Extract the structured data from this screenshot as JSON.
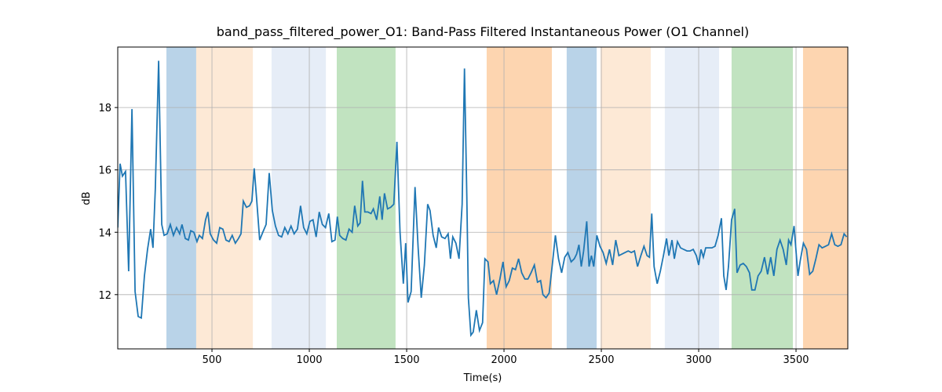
{
  "chart_data": {
    "type": "line",
    "title": "band_pass_filtered_power_O1: Band-Pass Filtered Instantaneous Power (O1 Channel)",
    "xlabel": "Time(s)",
    "ylabel": "dB",
    "xlim": [
      16,
      3766
    ],
    "ylim": [
      10.26,
      19.94
    ],
    "xticks": [
      500,
      1000,
      1500,
      2000,
      2500,
      3000,
      3500
    ],
    "yticks": [
      12,
      14,
      16,
      18
    ],
    "grid": true,
    "spans": [
      {
        "start": 266,
        "end": 419,
        "color": "#b9d3e8"
      },
      {
        "start": 419,
        "end": 710,
        "color": "#fde9d6"
      },
      {
        "start": 806,
        "end": 1085,
        "color": "#e6edf7"
      },
      {
        "start": 1141,
        "end": 1443,
        "color": "#c1e3c0"
      },
      {
        "start": 1911,
        "end": 2246,
        "color": "#fdd5b0"
      },
      {
        "start": 2322,
        "end": 2476,
        "color": "#b9d3e8"
      },
      {
        "start": 2496,
        "end": 2754,
        "color": "#fde9d6"
      },
      {
        "start": 2826,
        "end": 3105,
        "color": "#e6edf7"
      },
      {
        "start": 3169,
        "end": 3484,
        "color": "#c1e3c0"
      },
      {
        "start": 3536,
        "end": 3766,
        "color": "#fdd5b0"
      }
    ],
    "x": [
      16,
      28,
      40,
      56,
      72,
      89,
      105,
      121,
      137,
      153,
      169,
      185,
      197,
      209,
      226,
      242,
      254,
      270,
      286,
      302,
      318,
      334,
      346,
      363,
      379,
      391,
      407,
      423,
      435,
      451,
      467,
      479,
      491,
      508,
      524,
      540,
      556,
      572,
      588,
      604,
      620,
      636,
      649,
      661,
      677,
      693,
      705,
      717,
      729,
      745,
      761,
      778,
      794,
      810,
      826,
      842,
      858,
      874,
      890,
      906,
      922,
      939,
      955,
      971,
      987,
      1003,
      1019,
      1035,
      1051,
      1067,
      1083,
      1100,
      1116,
      1132,
      1144,
      1156,
      1172,
      1188,
      1204,
      1220,
      1233,
      1249,
      1261,
      1273,
      1285,
      1301,
      1317,
      1329,
      1346,
      1362,
      1374,
      1386,
      1402,
      1418,
      1434,
      1450,
      1466,
      1483,
      1495,
      1507,
      1523,
      1543,
      1559,
      1575,
      1591,
      1608,
      1620,
      1636,
      1652,
      1664,
      1680,
      1697,
      1713,
      1725,
      1737,
      1753,
      1769,
      1785,
      1797,
      1809,
      1817,
      1830,
      1842,
      1858,
      1874,
      1890,
      1902,
      1918,
      1930,
      1946,
      1962,
      1979,
      1995,
      2011,
      2027,
      2043,
      2059,
      2075,
      2091,
      2107,
      2123,
      2139,
      2156,
      2172,
      2188,
      2200,
      2216,
      2232,
      2248,
      2264,
      2280,
      2296,
      2312,
      2328,
      2345,
      2361,
      2373,
      2385,
      2397,
      2409,
      2425,
      2437,
      2449,
      2461,
      2477,
      2493,
      2509,
      2525,
      2542,
      2558,
      2574,
      2590,
      2606,
      2622,
      2638,
      2654,
      2670,
      2686,
      2703,
      2719,
      2735,
      2747,
      2759,
      2771,
      2787,
      2803,
      2819,
      2835,
      2847,
      2863,
      2875,
      2891,
      2907,
      2923,
      2940,
      2956,
      2972,
      2988,
      3000,
      3012,
      3024,
      3036,
      3052,
      3068,
      3084,
      3100,
      3117,
      3129,
      3141,
      3153,
      3169,
      3185,
      3197,
      3213,
      3229,
      3245,
      3261,
      3273,
      3289,
      3305,
      3321,
      3338,
      3354,
      3370,
      3386,
      3402,
      3418,
      3434,
      3450,
      3462,
      3474,
      3490,
      3510,
      3522,
      3538,
      3554,
      3570,
      3586,
      3602,
      3618,
      3634,
      3651,
      3667,
      3683,
      3699,
      3715,
      3731,
      3747,
      3760
    ],
    "series": [
      {
        "name": "band_pass_filtered_power_O1",
        "color": "#1f77b4",
        "values": [
          14.15,
          16.2,
          15.8,
          15.95,
          12.75,
          17.95,
          12.1,
          11.3,
          11.25,
          12.6,
          13.45,
          14.1,
          13.5,
          15.4,
          19.5,
          14.25,
          13.9,
          13.95,
          14.25,
          13.9,
          14.15,
          13.95,
          14.25,
          13.8,
          13.75,
          14.05,
          14.0,
          13.7,
          13.9,
          13.8,
          14.4,
          14.65,
          13.95,
          13.75,
          13.65,
          14.15,
          14.1,
          13.75,
          13.7,
          13.9,
          13.65,
          13.8,
          13.95,
          15.0,
          14.8,
          14.85,
          15.0,
          16.05,
          15.1,
          13.75,
          14.0,
          14.25,
          15.9,
          14.7,
          14.2,
          13.9,
          13.85,
          14.15,
          13.95,
          14.2,
          13.95,
          14.1,
          14.85,
          14.15,
          13.95,
          14.35,
          14.4,
          13.85,
          14.65,
          14.25,
          14.15,
          14.6,
          13.7,
          13.75,
          14.5,
          13.9,
          13.8,
          13.75,
          14.1,
          14.0,
          14.85,
          14.2,
          14.3,
          15.65,
          14.65,
          14.65,
          14.6,
          14.75,
          14.4,
          15.15,
          14.4,
          15.25,
          14.75,
          14.8,
          14.9,
          16.9,
          14.0,
          12.35,
          13.65,
          11.75,
          12.1,
          15.45,
          13.5,
          11.9,
          12.95,
          14.9,
          14.7,
          13.9,
          13.5,
          14.15,
          13.85,
          13.8,
          13.95,
          13.15,
          13.85,
          13.65,
          13.15,
          14.9,
          19.25,
          15.15,
          11.9,
          10.7,
          10.8,
          11.5,
          10.85,
          11.1,
          13.15,
          13.05,
          12.35,
          12.45,
          12.0,
          12.5,
          13.05,
          12.25,
          12.45,
          12.85,
          12.8,
          13.15,
          12.7,
          12.5,
          12.5,
          12.7,
          12.95,
          12.4,
          12.45,
          12.0,
          11.9,
          12.05,
          12.95,
          13.9,
          13.15,
          12.7,
          13.2,
          13.35,
          13.05,
          13.15,
          13.3,
          13.6,
          12.9,
          13.4,
          14.35,
          12.9,
          13.25,
          12.9,
          13.9,
          13.55,
          13.35,
          13.0,
          13.45,
          12.95,
          13.75,
          13.25,
          13.3,
          13.35,
          13.4,
          13.35,
          13.4,
          12.9,
          13.25,
          13.55,
          13.25,
          13.2,
          14.6,
          12.9,
          12.35,
          12.75,
          13.25,
          13.8,
          13.25,
          13.75,
          13.15,
          13.7,
          13.5,
          13.45,
          13.4,
          13.4,
          13.45,
          13.25,
          12.95,
          13.45,
          13.2,
          13.5,
          13.5,
          13.5,
          13.55,
          13.9,
          14.45,
          12.6,
          12.15,
          12.9,
          14.4,
          14.75,
          12.7,
          12.95,
          13.0,
          12.9,
          12.7,
          12.15,
          12.15,
          12.6,
          12.75,
          13.2,
          12.65,
          13.2,
          12.6,
          13.45,
          13.75,
          13.45,
          12.95,
          13.75,
          13.6,
          14.2,
          12.6,
          13.1,
          13.65,
          13.45,
          12.65,
          12.75,
          13.15,
          13.6,
          13.5,
          13.55,
          13.6,
          13.95,
          13.6,
          13.55,
          13.6,
          13.95,
          13.85
        ]
      }
    ]
  }
}
